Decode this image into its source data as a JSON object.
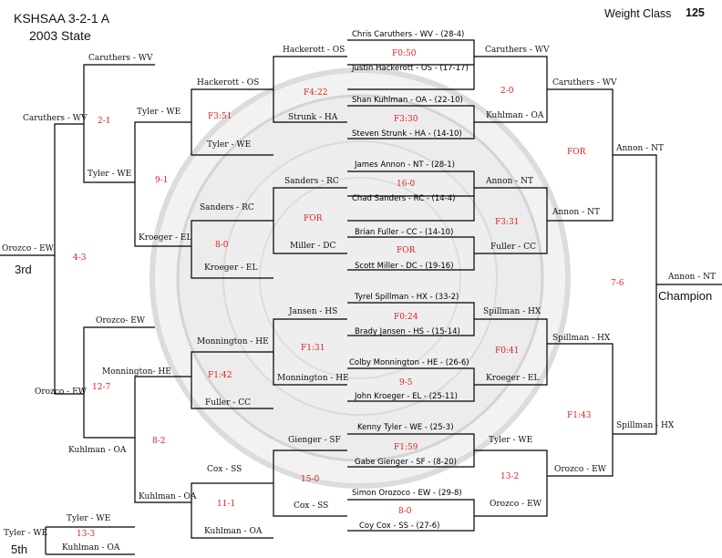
{
  "header": {
    "title": "KSHSAA 3-2-1 A",
    "year": "2003 State",
    "weight_label": "Weight Class",
    "weight_value": "125"
  },
  "labels": {
    "third": "3rd",
    "champion": "Champion",
    "fifth": "5th"
  },
  "colors": {
    "line": "#000000",
    "score": "#e02020",
    "watermark": "#d8d8d8"
  },
  "matches": [
    {
      "a": "Chris Caruthers - WV - (28-4)",
      "b": "Justin Hackerott - OS - (17-17)",
      "score": "F0:50"
    },
    {
      "a": "Shan Kuhlman - OA - (22-10)",
      "b": "Steven Strunk - HA - (14-10)",
      "score": "F3:30"
    },
    {
      "a": "James Annon - NT - (28-1)",
      "b": "Chad Sanders - RC - (14-4)",
      "score": "16-0"
    },
    {
      "a": "Brian Fuller - CC - (14-10)",
      "b": "Scott Miller - DC - (19-16)",
      "score": "FOR"
    },
    {
      "a": "Tyrel Spillman - HX - (33-2)",
      "b": "Brady Jansen - HS - (15-14)",
      "score": "F0:24"
    },
    {
      "a": "Colby Monnington - HE - (26-6)",
      "b": "John Kroeger - EL - (25-11)",
      "score": "9-5"
    },
    {
      "a": "Kenny Tyler - WE - (25-3)",
      "b": "Gabe Gienger - SF - (8-20)",
      "score": "F1:59"
    },
    {
      "a": "Simon Orozoco - EW - (29-8)",
      "b": "Coy Cox - SS - (27-6)",
      "score": "8-0"
    }
  ],
  "left": {
    "r1_winners": [
      "Hackerott - OS",
      "Strunk - HA",
      "Sanders - RC",
      "Miller - DC",
      "Jansen - HS",
      "Monnington - HE",
      "Gienger - SF",
      "Cox - SS"
    ],
    "r1_scores": [
      "F4:22",
      "FOR",
      "F1:31",
      "15-0"
    ],
    "r2_names": [
      "Hackerott - OS",
      "Tyler - WE",
      "Sanders - RC",
      "Kroeger - EL",
      "Monnington - HE",
      "Fuller - CC",
      "Cox - SS",
      "Kuhlman - OA"
    ],
    "r2_scores": [
      "F3:51",
      "8-0",
      "F1:42",
      "11-1"
    ],
    "r3_names": [
      "Tyler - WE",
      "Tyler - WE",
      "Kroeger - EL",
      "Monnington- HE",
      "Kuhlman - OA"
    ],
    "r3_scores": [
      "9-1",
      "8-2"
    ],
    "r4_names": [
      "Caruthers - WV",
      "Tyler - WE",
      "Orozco- EW",
      "Kuhlman - OA"
    ],
    "r4_scores": [
      "2-1",
      "12-7"
    ],
    "r5_names": [
      "Caruthers - WV",
      "Orozco - EW"
    ],
    "r5_score": "4-3",
    "third_name": "Orozco - EW",
    "fifth": {
      "a": "Tyler - WE",
      "b": "Kuhlman - OA",
      "winner": "Tyler - WE",
      "score": "13-3"
    }
  },
  "right": {
    "r1_winners": [
      "Caruthers - WV",
      "Kuhlman - OA",
      "Annon - NT",
      "Fuller - CC",
      "Spillman - HX",
      "Kroeger - EL",
      "Tyler - WE",
      "Orozco - EW"
    ],
    "r1_scores": [
      "2-0",
      "F3:31",
      "F0:41",
      "13-2"
    ],
    "r2_names": [
      "Caruthers - WV",
      "Annon - NT",
      "Spillman - HX",
      "Orozco - EW"
    ],
    "r2_scores": [
      "FOR",
      "F1:43"
    ],
    "r3_names": [
      "Annon - NT",
      "Spillman - HX"
    ],
    "r3_score": "7-6",
    "champion_name": "Annon - NT"
  }
}
